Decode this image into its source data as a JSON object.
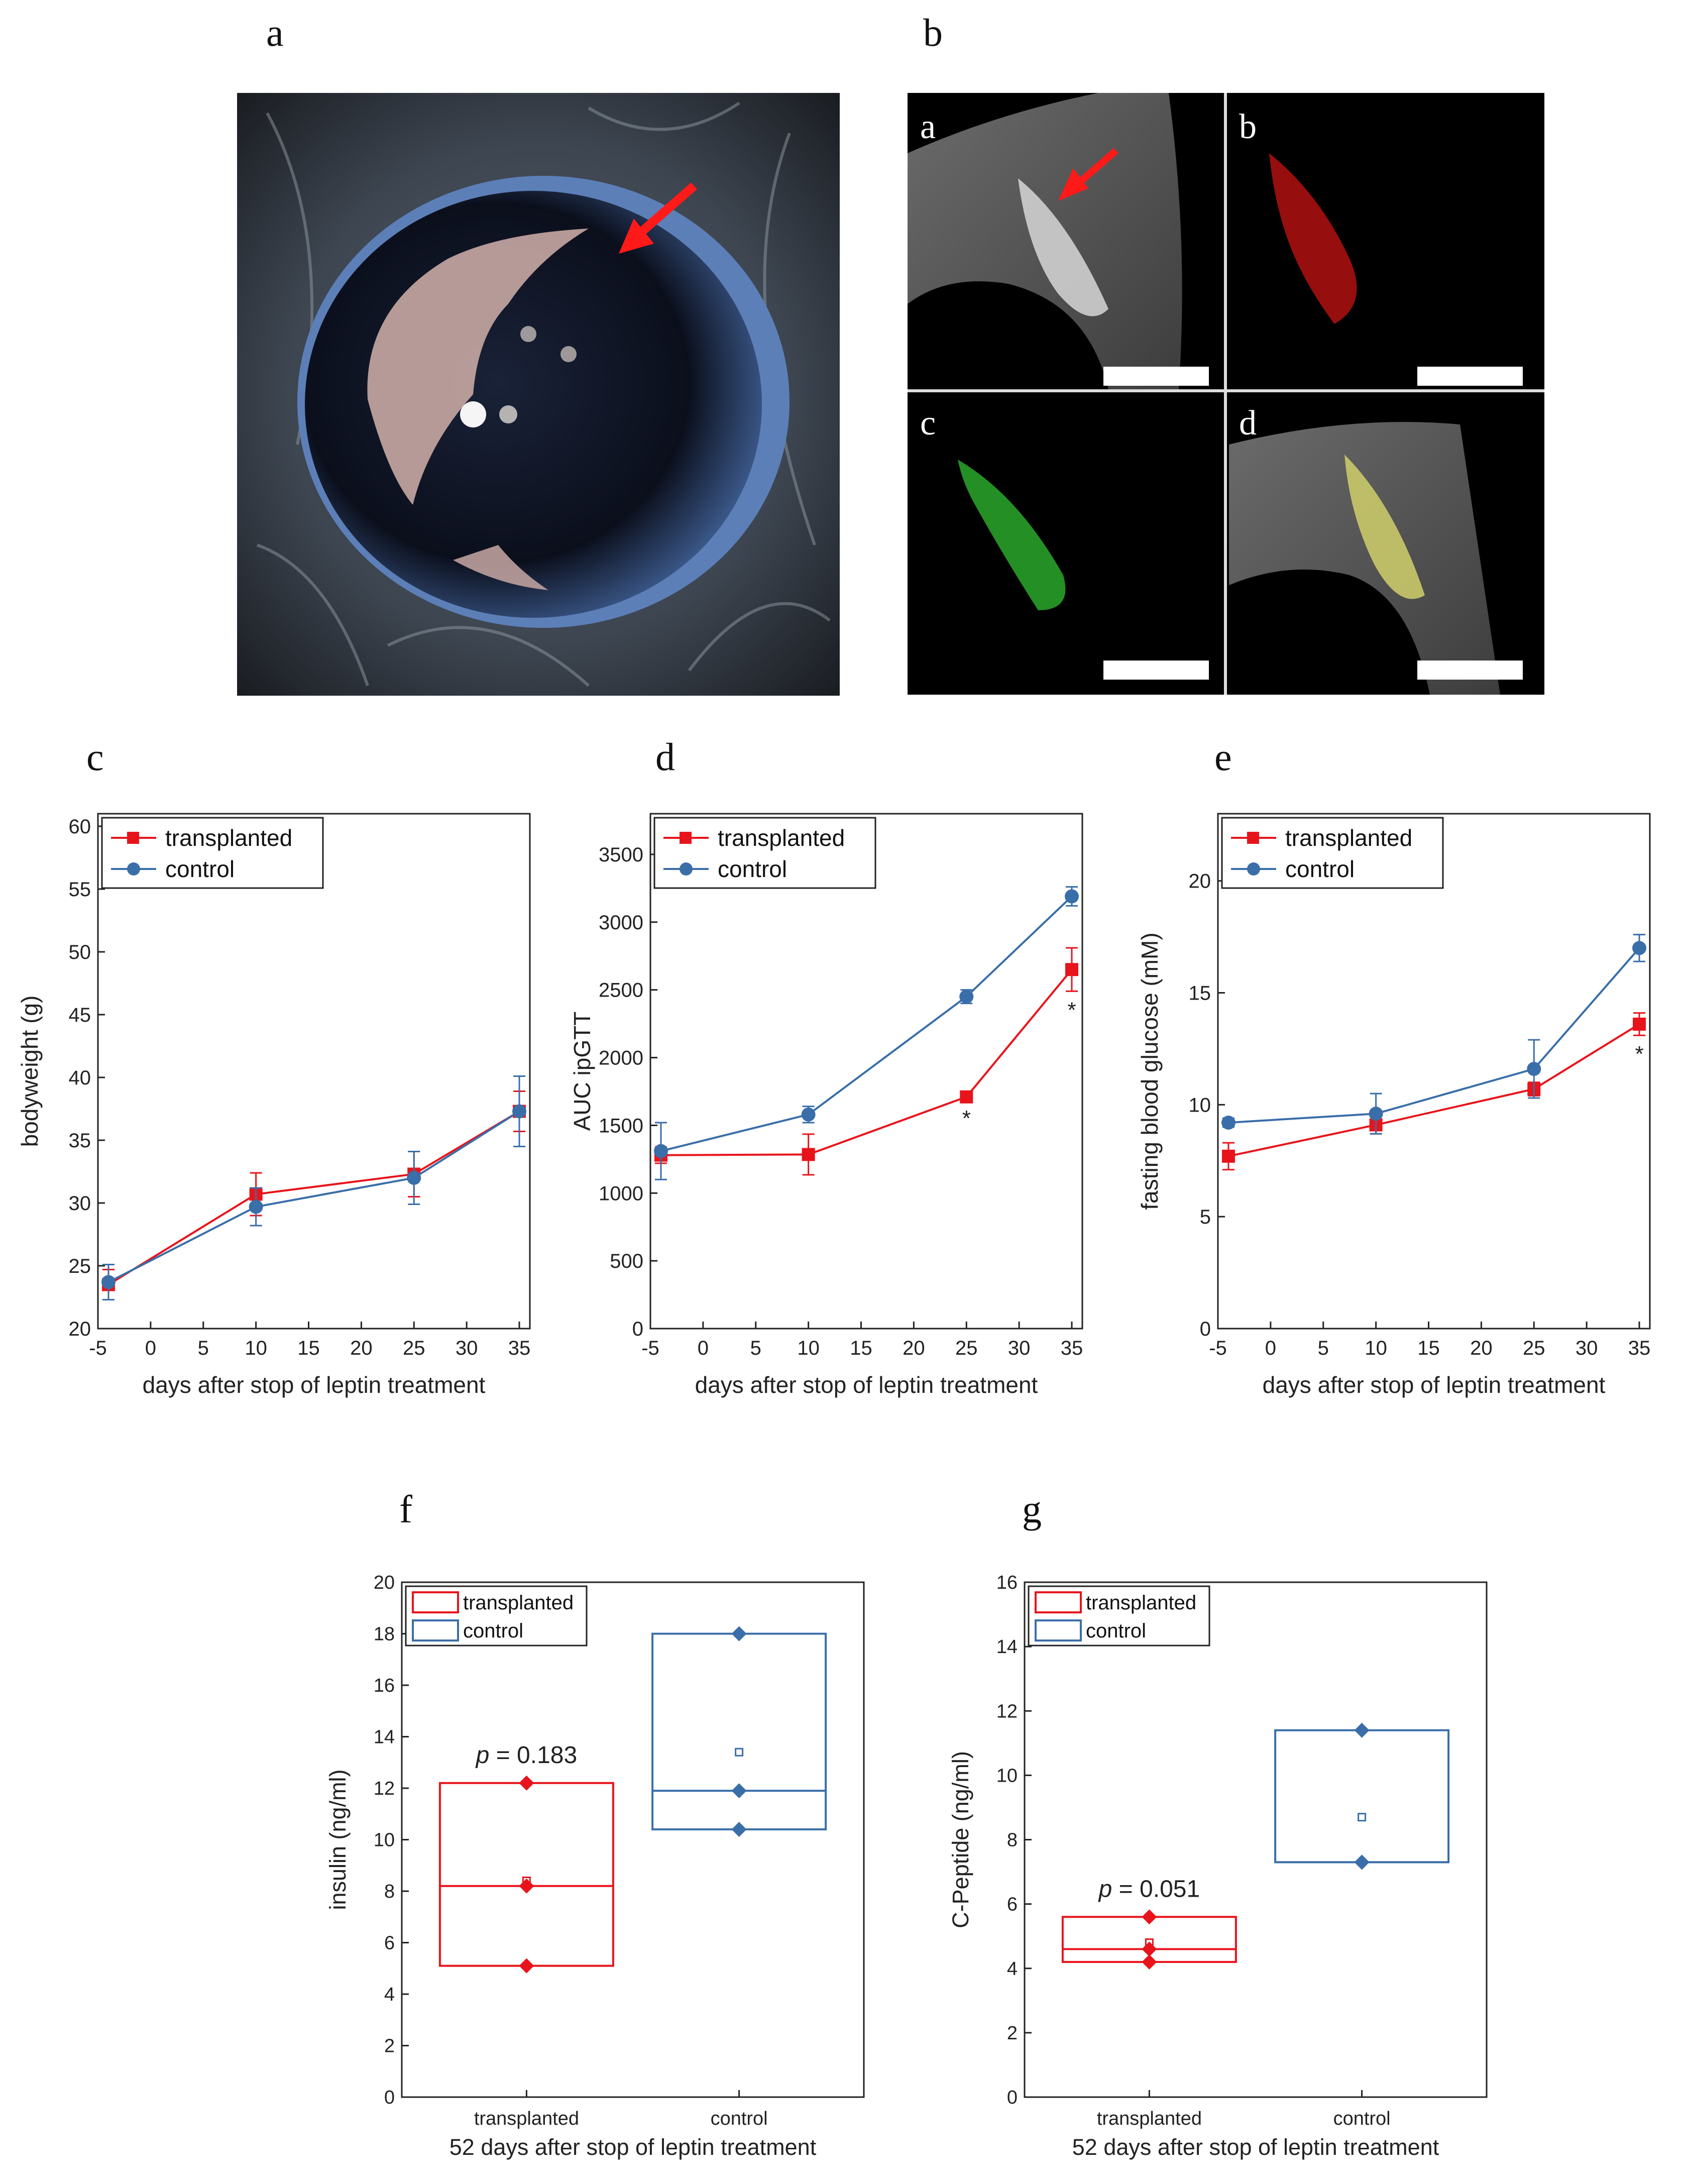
{
  "panel_labels": {
    "a": "a",
    "b": "b",
    "c": "c",
    "d": "d",
    "e": "e",
    "f": "f",
    "g": "g"
  },
  "micro_labels": [
    "a",
    "b",
    "c",
    "d"
  ],
  "colors": {
    "transplanted": "#e8141b",
    "control": "#3a6ea8"
  },
  "chart_data": [
    {
      "id": "c",
      "type": "line",
      "x": [
        -4,
        10,
        25,
        35
      ],
      "xlabel": "days after stop of leptin treatment",
      "ylabel": "bodyweight (g)",
      "xlim": [
        -5,
        36
      ],
      "ylim": [
        20,
        61
      ],
      "xticks": [
        "-5",
        "0",
        "5",
        "10",
        "15",
        "20",
        "25",
        "30",
        "35"
      ],
      "yticks": [
        "20",
        "25",
        "30",
        "35",
        "40",
        "45",
        "50",
        "55",
        "60"
      ],
      "series": [
        {
          "name": "transplanted",
          "values": [
            23.5,
            30.7,
            32.3,
            37.3
          ],
          "err": [
            1.2,
            1.7,
            1.8,
            1.6
          ]
        },
        {
          "name": "control",
          "values": [
            23.7,
            29.7,
            32.0,
            37.3
          ],
          "err": [
            1.4,
            1.5,
            2.1,
            2.8
          ]
        }
      ],
      "legend": "top-left",
      "stars": []
    },
    {
      "id": "d",
      "type": "line",
      "x": [
        -4,
        10,
        25,
        35
      ],
      "xlabel": "days after stop of leptin treatment",
      "ylabel": "AUC ipGTT",
      "xlim": [
        -5,
        36
      ],
      "ylim": [
        0,
        3800
      ],
      "xticks": [
        "-5",
        "0",
        "5",
        "10",
        "15",
        "20",
        "25",
        "30",
        "35"
      ],
      "yticks": [
        "0",
        "500",
        "1000",
        "1500",
        "2000",
        "2500",
        "3000",
        "3500"
      ],
      "series": [
        {
          "name": "transplanted",
          "values": [
            1280,
            1285,
            1710,
            2650
          ],
          "err": [
            60,
            150,
            20,
            160
          ]
        },
        {
          "name": "control",
          "values": [
            1310,
            1580,
            2450,
            3190
          ],
          "err": [
            210,
            60,
            50,
            70
          ]
        }
      ],
      "legend": "top-left",
      "stars": [
        "*",
        "*"
      ],
      "star_x": [
        25,
        35
      ]
    },
    {
      "id": "e",
      "type": "line",
      "x": [
        -4,
        10,
        25,
        35
      ],
      "xlabel": "days after stop of leptin treatment",
      "ylabel": "fasting blood glucose (mM)",
      "xlim": [
        -5,
        36
      ],
      "ylim": [
        0,
        23
      ],
      "xticks": [
        "-5",
        "0",
        "5",
        "10",
        "15",
        "20",
        "25",
        "30",
        "35"
      ],
      "yticks": [
        "0",
        "5",
        "10",
        "15",
        "20"
      ],
      "series": [
        {
          "name": "transplanted",
          "values": [
            7.7,
            9.1,
            10.7,
            13.6
          ],
          "err": [
            0.6,
            0.4,
            0.3,
            0.5
          ]
        },
        {
          "name": "control",
          "values": [
            9.2,
            9.6,
            11.6,
            17.0
          ],
          "err": [
            0.2,
            0.9,
            1.3,
            0.6
          ]
        }
      ],
      "legend": "top-left",
      "stars": [
        "*"
      ],
      "star_x": [
        35
      ]
    },
    {
      "id": "f",
      "type": "box",
      "categories": [
        "transplanted",
        "control"
      ],
      "xlabel": "52 days after stop of leptin treatment",
      "ylabel": "insulin (ng/ml)",
      "ylim": [
        0,
        20
      ],
      "yticks": [
        "0",
        "2",
        "4",
        "6",
        "8",
        "10",
        "12",
        "14",
        "16",
        "18",
        "20"
      ],
      "boxes": [
        {
          "name": "transplanted",
          "q1": 5.1,
          "median": 8.2,
          "q3": 12.2,
          "mean": 8.4,
          "points": [
            12.2,
            8.2,
            5.1
          ]
        },
        {
          "name": "control",
          "q1": 10.4,
          "median": 11.9,
          "q3": 18.0,
          "mean": 13.4,
          "points": [
            18.0,
            11.9,
            10.4
          ]
        }
      ],
      "pvalue_label": "p",
      "pvalue_text": " = 0.183",
      "legend": "top-left"
    },
    {
      "id": "g",
      "type": "box",
      "categories": [
        "transplanted",
        "control"
      ],
      "xlabel": "52 days after stop of leptin treatment",
      "ylabel": "C-Peptide (ng/ml)",
      "ylim": [
        0,
        16
      ],
      "yticks": [
        "0",
        "2",
        "4",
        "6",
        "8",
        "10",
        "12",
        "14",
        "16"
      ],
      "boxes": [
        {
          "name": "transplanted",
          "q1": 4.2,
          "median": 4.6,
          "q3": 5.6,
          "mean": 4.8,
          "points": [
            5.6,
            4.6,
            4.2
          ]
        },
        {
          "name": "control",
          "q1": 7.3,
          "median": 7.3,
          "q3": 11.4,
          "mean": 8.7,
          "points": [
            11.4,
            7.3,
            7.3
          ]
        }
      ],
      "pvalue_label": "p",
      "pvalue_text": " = 0.051",
      "legend": "top-left"
    }
  ]
}
